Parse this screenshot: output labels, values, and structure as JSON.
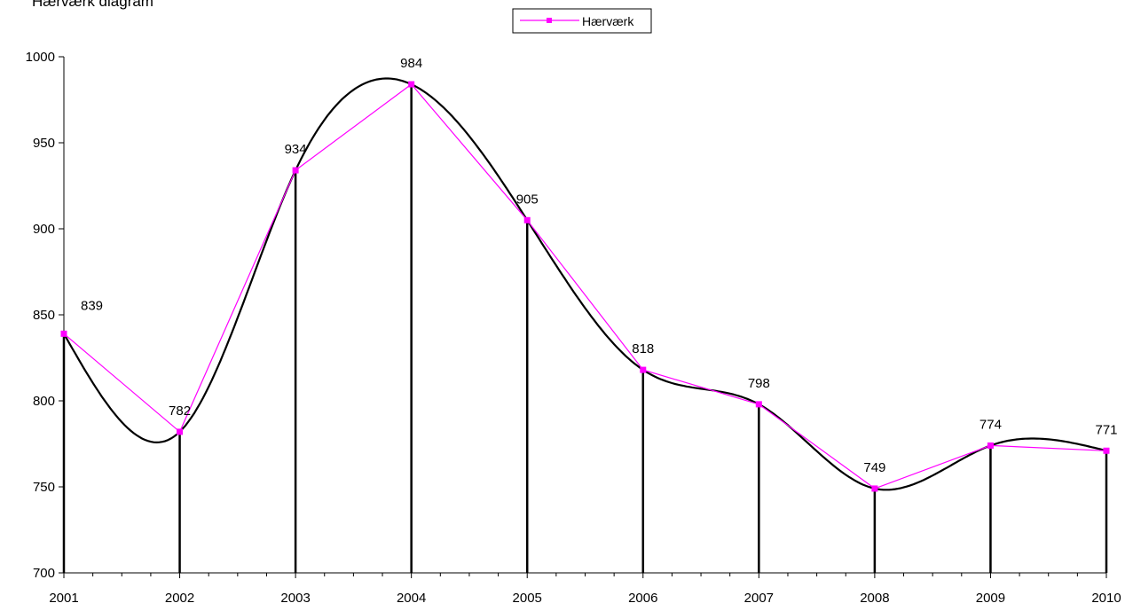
{
  "page": {
    "title_fragment": "Hærværk diagram"
  },
  "chart_data": {
    "type": "line",
    "title": "",
    "xlabel": "",
    "ylabel": "",
    "x": [
      "2001",
      "2002",
      "2003",
      "2004",
      "2005",
      "2006",
      "2007",
      "2008",
      "2009",
      "2010"
    ],
    "series": [
      {
        "name": "Hærværk",
        "values": [
          839,
          782,
          934,
          984,
          905,
          818,
          798,
          749,
          774,
          771
        ],
        "color": "#FF00FF"
      }
    ],
    "trendline": {
      "kind": "polynomial",
      "color": "#000000"
    },
    "drop_lines": true,
    "data_labels": [
      "839",
      "782",
      "934",
      "984",
      "905",
      "818",
      "798",
      "749",
      "774",
      "771"
    ],
    "ylim": [
      700,
      1000
    ],
    "yticks": [
      700,
      750,
      800,
      850,
      900,
      950,
      1000
    ],
    "ytick_labels": [
      "700",
      "750",
      "800",
      "850",
      "900",
      "950",
      "1000"
    ],
    "legend": {
      "position": "top-center",
      "entries": [
        "Hærværk"
      ]
    },
    "grid": false
  }
}
